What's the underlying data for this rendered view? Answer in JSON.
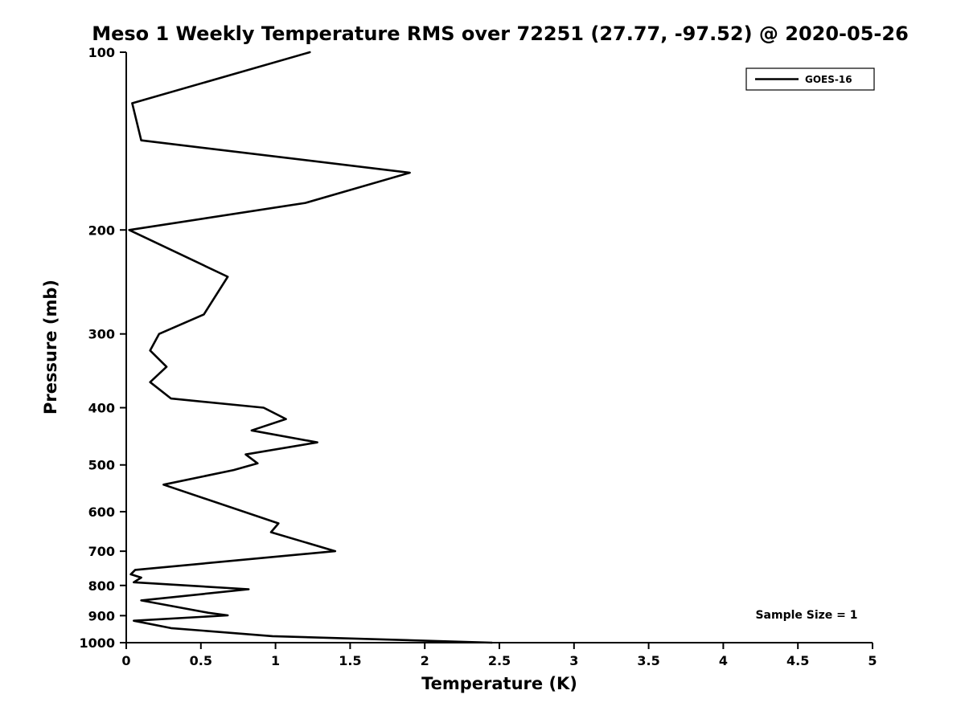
{
  "chart_data": {
    "type": "line",
    "title": "Meso 1 Weekly Temperature RMS over 72251 (27.77, -97.52) @ 2020-05-26",
    "xlabel": "Temperature (K)",
    "ylabel": "Pressure (mb)",
    "x_range": [
      0,
      5
    ],
    "x_ticks": [
      0,
      0.5,
      1,
      1.5,
      2,
      2.5,
      3,
      3.5,
      4,
      4.5,
      5
    ],
    "y_scale": "log",
    "y_inverted": true,
    "y_range": [
      100,
      1000
    ],
    "y_ticks": [
      100,
      200,
      300,
      400,
      500,
      600,
      700,
      800,
      900,
      1000
    ],
    "grid": false,
    "background_color": "#ffffff",
    "line_color": "#000000",
    "legend": {
      "position": "top-right",
      "entries": [
        {
          "label": "GOES-16",
          "color": "#000000",
          "line_width": 2.6
        }
      ]
    },
    "annotation": "Sample Size = 1",
    "series": [
      {
        "name": "GOES-16",
        "points_format": "[temperature_K, pressure_mb]",
        "points": [
          [
            1.23,
            100
          ],
          [
            0.04,
            122
          ],
          [
            0.1,
            141
          ],
          [
            1.9,
            160
          ],
          [
            1.2,
            180
          ],
          [
            0.02,
            200
          ],
          [
            0.68,
            240
          ],
          [
            0.52,
            278
          ],
          [
            0.22,
            300
          ],
          [
            0.16,
            320
          ],
          [
            0.27,
            341
          ],
          [
            0.16,
            362
          ],
          [
            0.3,
            386
          ],
          [
            0.92,
            400
          ],
          [
            1.07,
            418
          ],
          [
            0.84,
            437
          ],
          [
            1.28,
            458
          ],
          [
            0.8,
            480
          ],
          [
            0.88,
            497
          ],
          [
            0.72,
            510
          ],
          [
            0.25,
            540
          ],
          [
            1.02,
            628
          ],
          [
            0.97,
            650
          ],
          [
            1.4,
            700
          ],
          [
            0.06,
            753
          ],
          [
            0.03,
            766
          ],
          [
            0.1,
            776
          ],
          [
            0.05,
            790
          ],
          [
            0.82,
            812
          ],
          [
            0.1,
            848
          ],
          [
            0.55,
            890
          ],
          [
            0.68,
            899
          ],
          [
            0.05,
            918
          ],
          [
            0.3,
            945
          ],
          [
            0.98,
            975
          ],
          [
            2.45,
            1000
          ]
        ]
      }
    ]
  }
}
